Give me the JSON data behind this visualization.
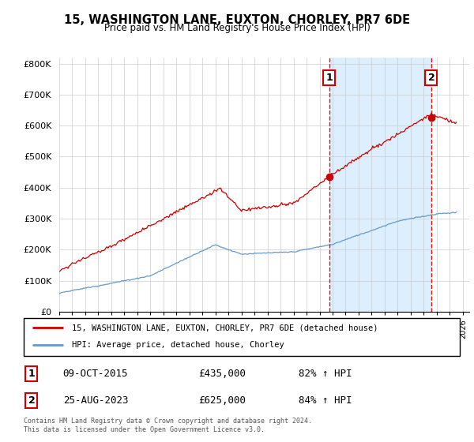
{
  "title": "15, WASHINGTON LANE, EUXTON, CHORLEY, PR7 6DE",
  "subtitle": "Price paid vs. HM Land Registry's House Price Index (HPI)",
  "ylim": [
    0,
    800000
  ],
  "yticks": [
    0,
    100000,
    200000,
    300000,
    400000,
    500000,
    600000,
    700000,
    800000
  ],
  "sale1_year": 2015.75,
  "sale1_price": 435000,
  "sale2_year": 2023.583,
  "sale2_price": 625000,
  "red_line_color": "#cc0000",
  "blue_line_color": "#6699cc",
  "shade_color": "#ddeeff",
  "background_color": "#ffffff",
  "grid_color": "#cccccc",
  "legend_label_red": "15, WASHINGTON LANE, EUXTON, CHORLEY, PR7 6DE (detached house)",
  "legend_label_blue": "HPI: Average price, detached house, Chorley",
  "footer": "Contains HM Land Registry data © Crown copyright and database right 2024.\nThis data is licensed under the Open Government Licence v3.0.",
  "x_start_year": 1995,
  "x_end_year": 2026
}
